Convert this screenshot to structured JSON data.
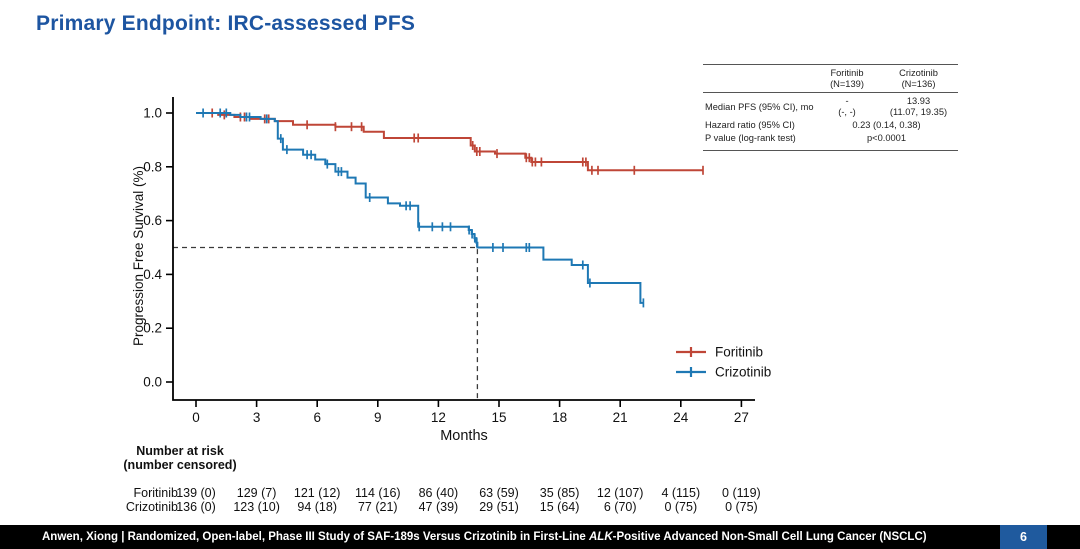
{
  "slide": {
    "title": "Primary Endpoint: IRC-assessed PFS",
    "page_number": "6",
    "footer": {
      "prefix": "Anwen, Xiong | Randomized, Open-label, Phase III Study of SAF-189s Versus Crizotinib in First-Line ",
      "italic": "ALK",
      "suffix": "-Positive Advanced Non-Small Cell Lung Cancer (NSCLC)"
    }
  },
  "colors": {
    "foritinib": "#bf4637",
    "crizotinib": "#1e78b4",
    "title": "#1d55a1",
    "page_badge": "#1f5a9e",
    "dashed_line": "#3a3a3a"
  },
  "stats_table": {
    "col_headers": [
      {
        "name": "Foritinib",
        "n": "(N=139)"
      },
      {
        "name": "Crizotinib",
        "n": "(N=136)"
      }
    ],
    "rows": [
      {
        "label": "Median PFS (95% CI), mo",
        "foritinib_line1": "-",
        "foritinib_line2": "(-, -)",
        "crizotinib_line1": "13.93",
        "crizotinib_line2": "(11.07, 19.35)"
      },
      {
        "label": "Hazard ratio (95% CI)",
        "value": "0.23 (0.14, 0.38)"
      },
      {
        "label": "P value (log-rank test)",
        "value": "p<0.0001"
      }
    ]
  },
  "chart_data": {
    "type": "line",
    "subtype": "kaplan-meier-step",
    "title": "",
    "xlabel": "Months",
    "ylabel": "Progression Free Survival (%)",
    "xticks": [
      0,
      3,
      6,
      9,
      12,
      15,
      18,
      21,
      24,
      27
    ],
    "yticks": [
      1.0,
      0.8,
      0.6,
      0.4,
      0.2,
      0.0
    ],
    "ytick_labels": [
      "1.0",
      "0.8",
      "0.6",
      "0.4",
      "0.2",
      "0.0"
    ],
    "xlim": [
      0,
      27
    ],
    "ylim": [
      0,
      1
    ],
    "grid": false,
    "legend_position": "inside-bottom-right",
    "median_crossing": {
      "month": 13.93,
      "survival": 0.5
    },
    "series": [
      {
        "name": "Foritinib",
        "color": "#bf4637",
        "end_month": 25.1,
        "steps": [
          [
            0,
            1.0
          ],
          [
            1.1,
            0.993
          ],
          [
            1.9,
            0.985
          ],
          [
            2.7,
            0.978
          ],
          [
            3.9,
            0.97
          ],
          [
            4.8,
            0.956
          ],
          [
            6.9,
            0.949
          ],
          [
            8.3,
            0.93
          ],
          [
            9.3,
            0.907
          ],
          [
            13.6,
            0.879
          ],
          [
            13.8,
            0.857
          ],
          [
            14.8,
            0.849
          ],
          [
            16.3,
            0.834
          ],
          [
            16.6,
            0.818
          ],
          [
            19.4,
            0.787
          ]
        ],
        "censor_months": [
          0.8,
          1.4,
          2.2,
          2.4,
          3.4,
          3.6,
          5.5,
          6.9,
          7.7,
          8.2,
          10.8,
          11.0,
          13.7,
          13.9,
          14.05,
          14.9,
          16.35,
          16.5,
          16.65,
          16.8,
          17.1,
          19.15,
          19.3,
          19.6,
          19.9,
          21.7,
          25.1
        ]
      },
      {
        "name": "Crizotinib",
        "color": "#1e78b4",
        "end_month": 22.15,
        "steps": [
          [
            0,
            1.0
          ],
          [
            1.7,
            0.993
          ],
          [
            2.2,
            0.985
          ],
          [
            3.2,
            0.978
          ],
          [
            3.9,
            0.97
          ],
          [
            4.05,
            0.905
          ],
          [
            4.3,
            0.864
          ],
          [
            5.3,
            0.845
          ],
          [
            5.9,
            0.827
          ],
          [
            6.4,
            0.81
          ],
          [
            6.9,
            0.782
          ],
          [
            7.5,
            0.76
          ],
          [
            7.9,
            0.738
          ],
          [
            8.4,
            0.686
          ],
          [
            9.5,
            0.664
          ],
          [
            10.1,
            0.655
          ],
          [
            11.0,
            0.577
          ],
          [
            13.5,
            0.565
          ],
          [
            13.65,
            0.55
          ],
          [
            13.78,
            0.535
          ],
          [
            13.88,
            0.518
          ],
          [
            13.93,
            0.5
          ],
          [
            17.2,
            0.455
          ],
          [
            18.6,
            0.435
          ],
          [
            19.4,
            0.368
          ],
          [
            22.0,
            0.294
          ]
        ],
        "censor_months": [
          0.35,
          1.2,
          1.5,
          2.5,
          2.65,
          3.5,
          4.2,
          4.5,
          5.5,
          5.7,
          6.5,
          7.05,
          7.2,
          8.6,
          10.4,
          10.6,
          11.05,
          11.7,
          12.2,
          12.6,
          13.52,
          13.67,
          13.8,
          13.9,
          14.7,
          15.2,
          16.35,
          16.5,
          19.15,
          19.5,
          22.15
        ]
      }
    ]
  },
  "risk_table": {
    "header_line1": "Number at risk",
    "header_line2": "(number censored)",
    "rows": [
      {
        "label": "Foritinib",
        "values": [
          "139 (0)",
          "129 (7)",
          "121 (12)",
          "114 (16)",
          "86 (40)",
          "63 (59)",
          "35 (85)",
          "12 (107)",
          "4 (115)",
          "0 (119)"
        ]
      },
      {
        "label": "Crizotinib",
        "values": [
          "136 (0)",
          "123 (10)",
          "94 (18)",
          "77 (21)",
          "47 (39)",
          "29 (51)",
          "15 (64)",
          "6 (70)",
          "0 (75)",
          "0 (75)"
        ]
      }
    ]
  }
}
